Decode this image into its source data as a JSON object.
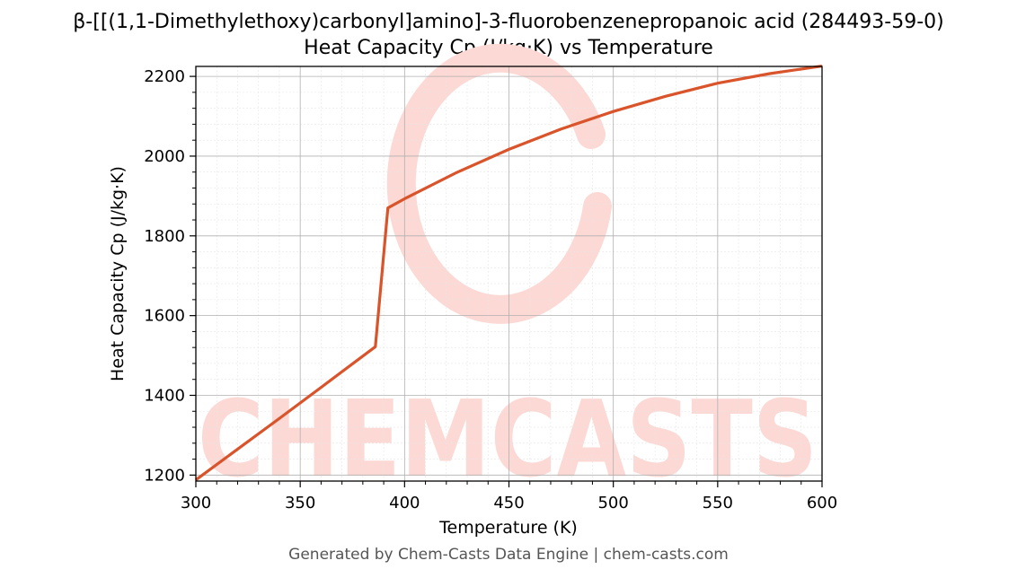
{
  "chart_data": {
    "type": "line",
    "title_line1": "β-[[(1,1-Dimethylethoxy)carbonyl]amino]-3-fluorobenzenepropanoic acid (284493-59-0)",
    "title_line2": "Heat Capacity Cp (J/kg·K) vs Temperature",
    "xlabel": "Temperature (K)",
    "ylabel": "Heat Capacity Cp (J/kg·K)",
    "xlim": [
      300,
      600
    ],
    "ylim": [
      1185,
      2225
    ],
    "xticks": [
      300,
      350,
      400,
      450,
      500,
      550,
      600
    ],
    "yticks": [
      1200,
      1400,
      1600,
      1800,
      2000,
      2200
    ],
    "grid": true,
    "line_color": "#d9542a",
    "series": [
      {
        "x": [
          300,
          320,
          340,
          360,
          386,
          392,
          400,
          425,
          450,
          475,
          500,
          525,
          550,
          575,
          600
        ],
        "y": [
          1188,
          1265,
          1342,
          1420,
          1522,
          1870,
          1893,
          1959,
          2017,
          2068,
          2112,
          2150,
          2183,
          2207,
          2226
        ]
      }
    ]
  },
  "watermark": {
    "text": "CHEMCASTS",
    "color": "#fcd9d4"
  },
  "footer": "Generated by Chem-Casts Data Engine | chem-casts.com"
}
